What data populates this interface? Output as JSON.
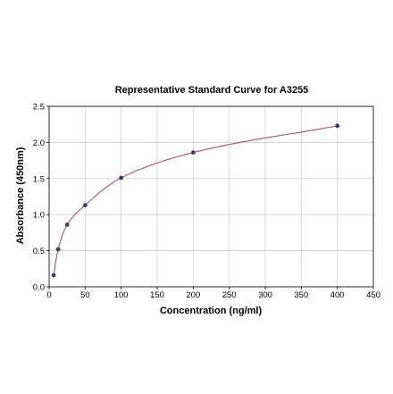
{
  "chart_data": {
    "type": "scatter",
    "title": "Representative Standard Curve for A3255",
    "xlabel": "Concentration (ng/ml)",
    "ylabel": "Absorbance (450nm)",
    "xlim": [
      0,
      450
    ],
    "ylim": [
      0,
      2.5
    ],
    "x_ticks": [
      "0",
      "50",
      "100",
      "150",
      "200",
      "250",
      "300",
      "350",
      "400",
      "450"
    ],
    "y_ticks": [
      "0.0",
      "0.5",
      "1.0",
      "1.5",
      "2.0",
      "2.5"
    ],
    "grid": true,
    "series": [
      {
        "x": [
          6.25,
          12.5,
          25,
          50,
          100,
          200,
          400
        ],
        "y": [
          0.16,
          0.52,
          0.86,
          1.13,
          1.51,
          1.86,
          2.23
        ],
        "point_color": "#3b3b6e",
        "fit_curve": true,
        "fit_color": "#b0506a"
      }
    ]
  }
}
